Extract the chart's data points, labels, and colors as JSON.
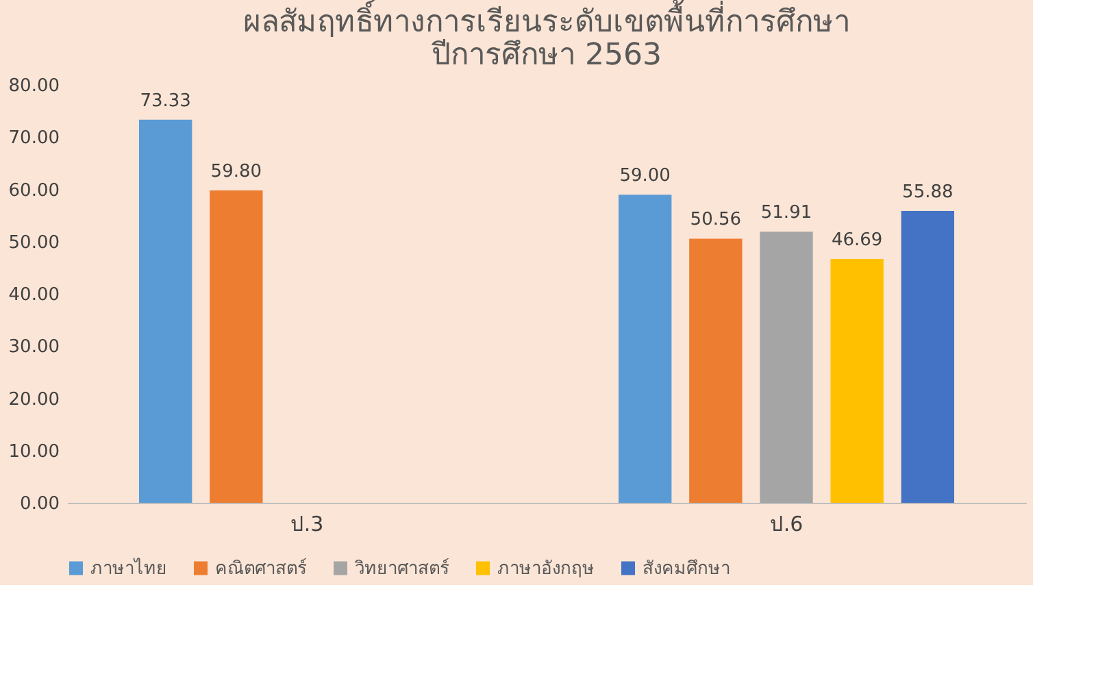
{
  "chart_data": {
    "type": "bar",
    "title": [
      "ผลสัมฤทธิ์ทางการเรียนระดับเขตพื้นที่การศึกษา",
      "ปีการศึกษา 2563"
    ],
    "categories": [
      "ป.3",
      "ป.6"
    ],
    "series": [
      {
        "name": "ภาษาไทย",
        "color": "#5b9bd5",
        "values": [
          73.33,
          59.0
        ],
        "value_labels": [
          "73.33",
          "59.00"
        ]
      },
      {
        "name": "คณิตศาสตร์",
        "color": "#ed7d31",
        "values": [
          59.8,
          50.56
        ],
        "value_labels": [
          "59.80",
          "50.56"
        ]
      },
      {
        "name": "วิทยาศาสตร์",
        "color": "#a5a5a5",
        "values": [
          null,
          51.91
        ],
        "value_labels": [
          null,
          "51.91"
        ]
      },
      {
        "name": "ภาษาอังกฤษ",
        "color": "#ffc000",
        "values": [
          null,
          46.69
        ],
        "value_labels": [
          null,
          "46.69"
        ]
      },
      {
        "name": "สังคมศึกษา",
        "color": "#4472c4",
        "values": [
          null,
          55.88
        ],
        "value_labels": [
          null,
          "55.88"
        ]
      }
    ],
    "ylim": [
      0,
      80
    ],
    "yticks": [
      {
        "value": 0,
        "label": "0.00"
      },
      {
        "value": 10,
        "label": "10.00"
      },
      {
        "value": 20,
        "label": "20.00"
      },
      {
        "value": 30,
        "label": "30.00"
      },
      {
        "value": 40,
        "label": "40.00"
      },
      {
        "value": 50,
        "label": "50.00"
      },
      {
        "value": 60,
        "label": "60.00"
      },
      {
        "value": 70,
        "label": "70.00"
      },
      {
        "value": 80,
        "label": "80.00"
      }
    ],
    "grid": false,
    "legend": "bottom"
  }
}
